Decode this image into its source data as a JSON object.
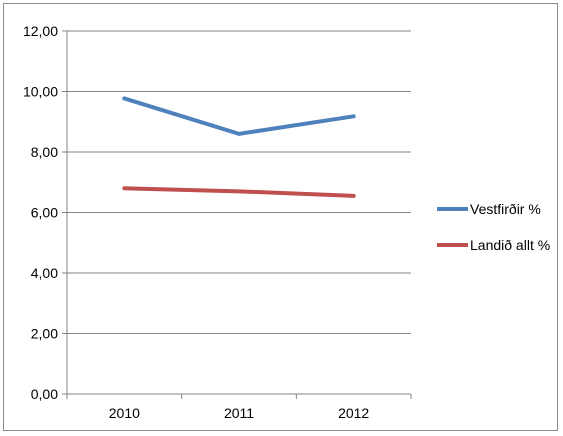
{
  "chart_data": {
    "type": "line",
    "categories": [
      "2010",
      "2011",
      "2012"
    ],
    "series": [
      {
        "name": "Vestfirðir %",
        "values": [
          9.77,
          8.6,
          9.18
        ],
        "color": "#4f81bd"
      },
      {
        "name": "Landið allt %",
        "values": [
          6.8,
          6.7,
          6.55
        ],
        "color": "#c0504d"
      }
    ],
    "ylim": [
      0,
      12
    ],
    "yticks": [
      "0,00",
      "2,00",
      "4,00",
      "6,00",
      "8,00",
      "10,00",
      "12,00"
    ],
    "grid": true,
    "legend": "right",
    "title": "",
    "xlabel": "",
    "ylabel": ""
  }
}
